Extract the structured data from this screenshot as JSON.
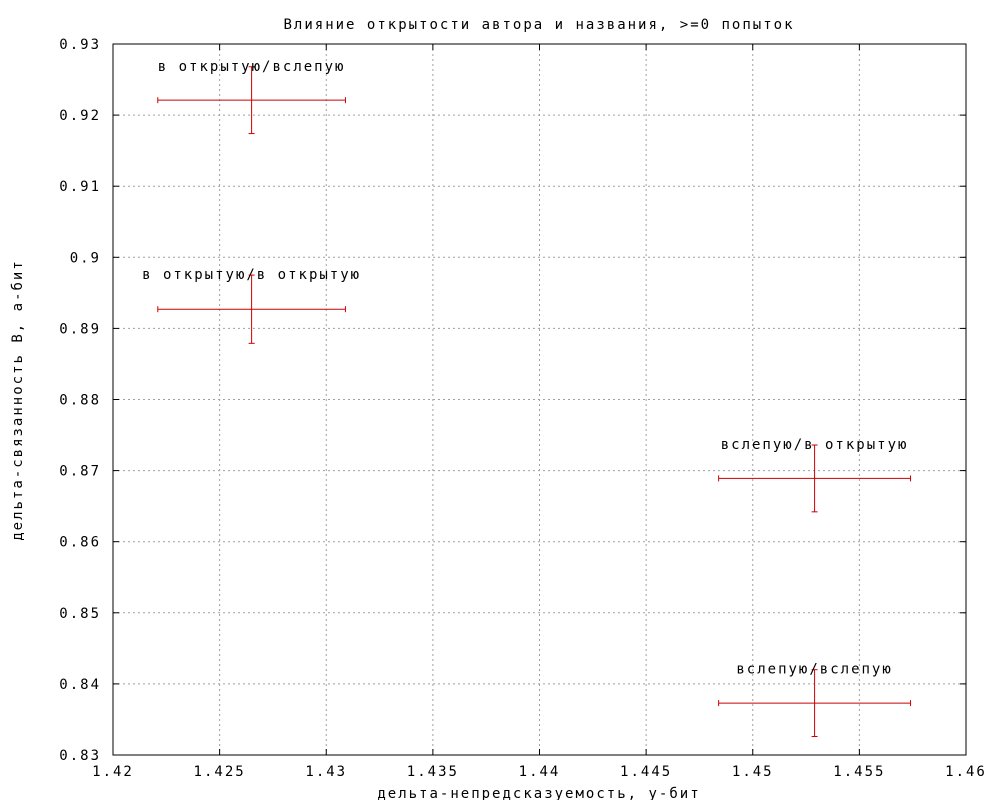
{
  "chart_data": {
    "type": "scatter",
    "title": "Влияние открытости автора и названия, >=0 попыток",
    "xlabel": "дельта-непредсказуемость, у-бит",
    "ylabel": "дельта-связанность B, а-бит",
    "xlim": [
      1.42,
      1.46
    ],
    "ylim": [
      0.83,
      0.93
    ],
    "x_ticks": [
      "1.42",
      "1.425",
      "1.43",
      "1.435",
      "1.44",
      "1.445",
      "1.45",
      "1.455",
      "1.46"
    ],
    "y_ticks": [
      "0.93",
      "0.92",
      "0.91",
      "0.9",
      "0.89",
      "0.88",
      "0.87",
      "0.86",
      "0.85",
      "0.84",
      "0.83"
    ],
    "grid": true,
    "error_color": "#cc0000",
    "points": [
      {
        "label": "в открытую/вслепую",
        "x": 1.4265,
        "y": 0.9221,
        "xerr": 0.0044,
        "yerr": 0.0047
      },
      {
        "label": "в открытую/в открытую",
        "x": 1.4265,
        "y": 0.8927,
        "xerr": 0.0044,
        "yerr": 0.0048
      },
      {
        "label": "вслепую/в открытую",
        "x": 1.4529,
        "y": 0.8689,
        "xerr": 0.0045,
        "yerr": 0.0047
      },
      {
        "label": "вслепую/вслепую",
        "x": 1.4529,
        "y": 0.8373,
        "xerr": 0.0045,
        "yerr": 0.0047
      }
    ]
  }
}
